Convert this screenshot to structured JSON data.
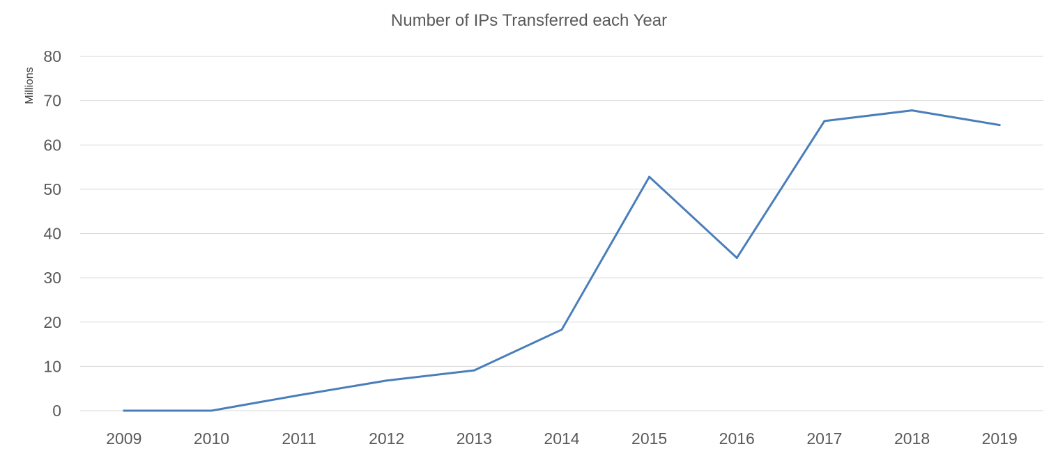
{
  "chart_data": {
    "type": "line",
    "title": "Number of IPs Transferred each Year",
    "xlabel": "",
    "ylabel": "",
    "y_unit_label": "Millions",
    "categories": [
      "2009",
      "2010",
      "2011",
      "2012",
      "2013",
      "2014",
      "2015",
      "2016",
      "2017",
      "2018",
      "2019"
    ],
    "series": [
      {
        "values": [
          0,
          0,
          3.5,
          6.8,
          9.1,
          18.3,
          52.8,
          34.5,
          65.4,
          67.8,
          64.5
        ]
      }
    ],
    "ylim": [
      0,
      80
    ],
    "y_ticks": [
      "0",
      "10",
      "20",
      "30",
      "40",
      "50",
      "60",
      "70",
      "80"
    ],
    "grid": true,
    "legend": "none",
    "colors": {
      "line": "#4a7ebb",
      "grid": "#d9d9d9",
      "text": "#595959"
    }
  }
}
